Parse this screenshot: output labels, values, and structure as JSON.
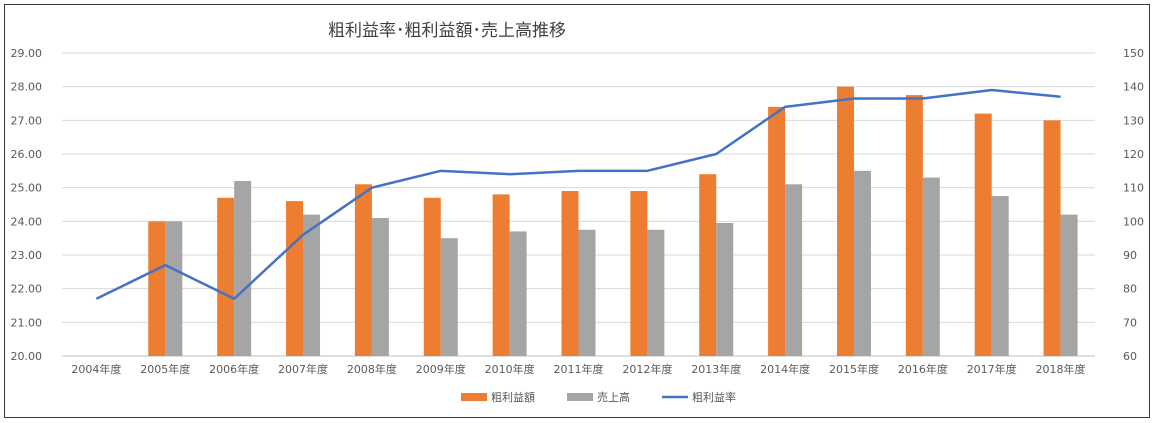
{
  "chart_data": {
    "type": "bar",
    "title": "粗利益率･粗利益額･売上高推移",
    "categories": [
      "2004年度",
      "2005年度",
      "2006年度",
      "2007年度",
      "2008年度",
      "2009年度",
      "2010年度",
      "2011年度",
      "2012年度",
      "2013年度",
      "2014年度",
      "2015年度",
      "2016年度",
      "2017年度",
      "2018年度"
    ],
    "series": [
      {
        "name": "粗利益額",
        "type": "bar",
        "axis": "left",
        "color": "#ED7D31",
        "values": [
          null,
          24.0,
          24.7,
          24.6,
          25.1,
          24.7,
          24.8,
          24.9,
          24.9,
          25.4,
          27.4,
          28.0,
          27.75,
          27.2,
          27.0
        ]
      },
      {
        "name": "売上高",
        "type": "bar",
        "axis": "right",
        "color": "#A5A5A5",
        "values": [
          null,
          100,
          112,
          102,
          101,
          95,
          97,
          97.5,
          97.5,
          99.5,
          111,
          115,
          113,
          107.5,
          102
        ]
      },
      {
        "name": "粗利益率",
        "type": "line",
        "axis": "left",
        "color": "#4472C4",
        "values": [
          21.7,
          22.7,
          21.7,
          23.6,
          25.0,
          25.5,
          25.4,
          25.5,
          25.5,
          26.0,
          27.4,
          27.65,
          27.65,
          27.9,
          27.7
        ]
      }
    ],
    "y_left": {
      "min": 20,
      "max": 29,
      "step": 1,
      "ticks": [
        "20.00",
        "21.00",
        "22.00",
        "23.00",
        "24.00",
        "25.00",
        "26.00",
        "27.00",
        "28.00",
        "29.00"
      ]
    },
    "y_right": {
      "min": 60,
      "max": 150,
      "step": 10,
      "ticks": [
        "60",
        "70",
        "80",
        "90",
        "100",
        "110",
        "120",
        "130",
        "140",
        "150"
      ]
    },
    "grid": true,
    "legend_position": "bottom"
  }
}
